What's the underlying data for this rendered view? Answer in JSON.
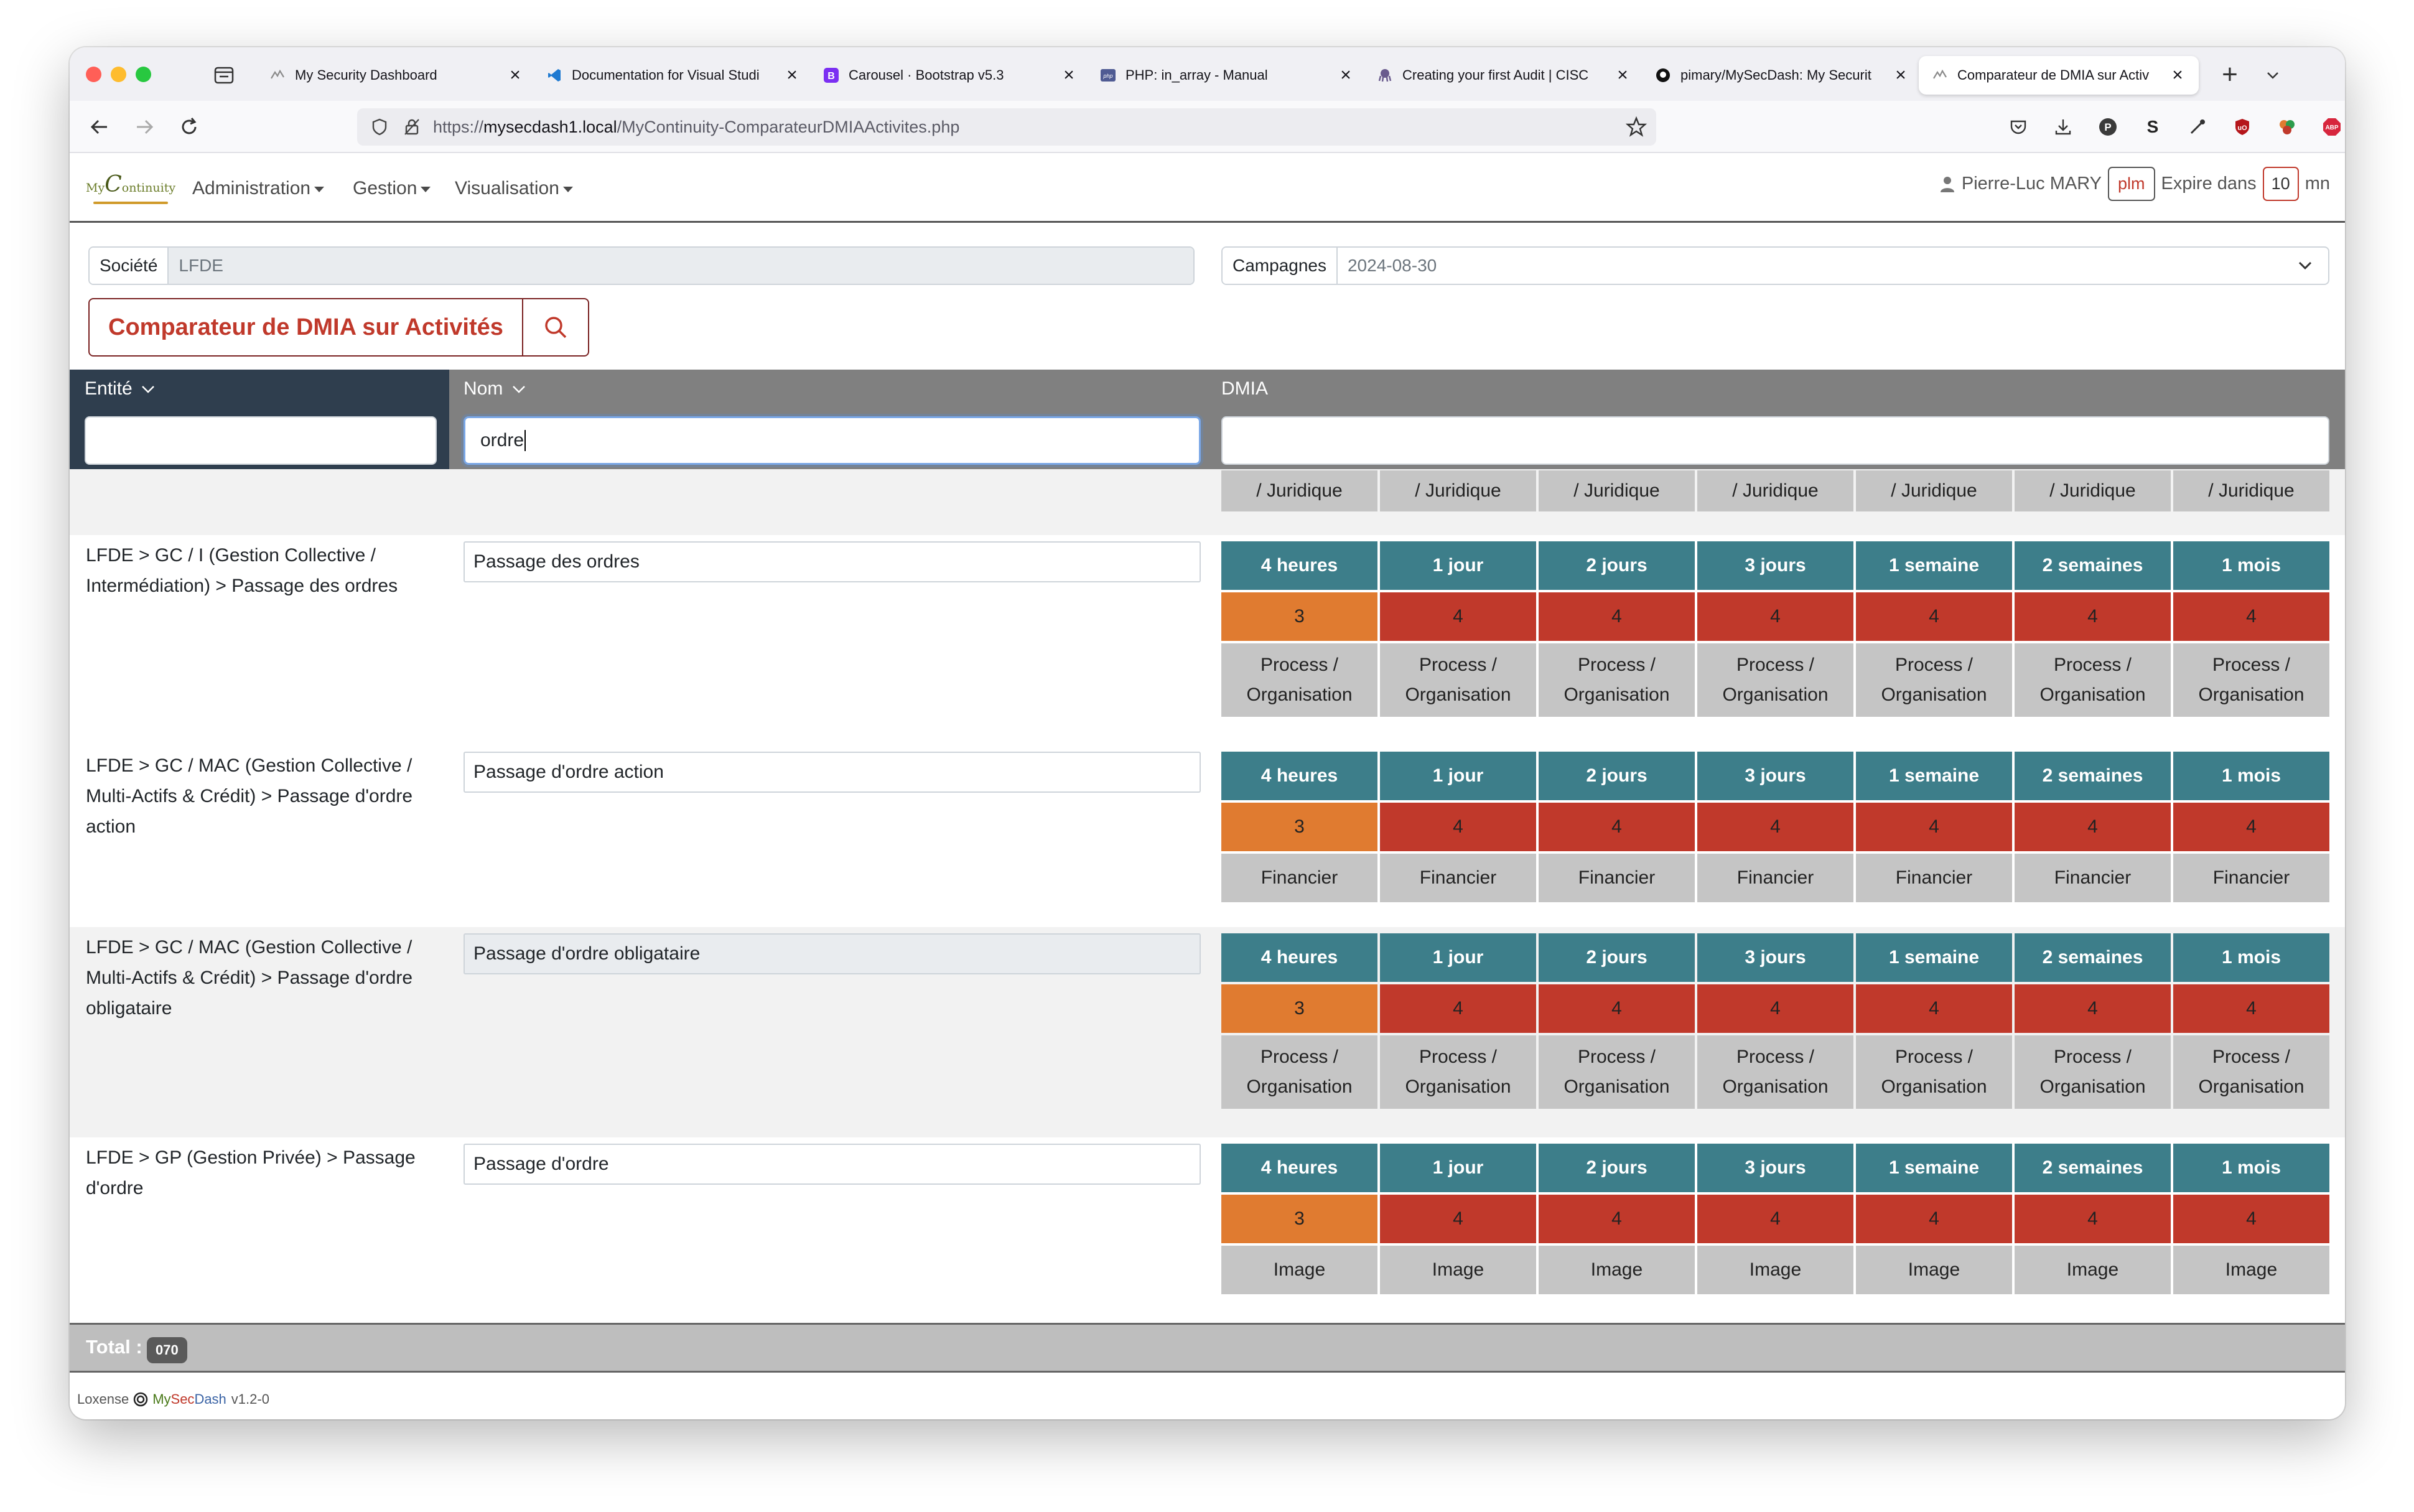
{
  "browser": {
    "tabs": [
      {
        "title": "My Security Dashboard",
        "icon": "mysecdash-icon",
        "active": false
      },
      {
        "title": "Documentation for Visual Studi",
        "icon": "vscode-icon",
        "active": false
      },
      {
        "title": "Carousel · Bootstrap v5.3",
        "icon": "bootstrap-icon",
        "active": false
      },
      {
        "title": "PHP: in_array - Manual",
        "icon": "php-icon",
        "active": false
      },
      {
        "title": "Creating your first Audit | CISC",
        "icon": "octopus-icon",
        "active": false
      },
      {
        "title": "pimary/MySecDash: My Securit",
        "icon": "github-icon",
        "active": false
      },
      {
        "title": "Comparateur de DMIA sur Activ",
        "icon": "mysecdash-icon",
        "active": true
      }
    ],
    "url_prefix": "https://",
    "url_host": "mysecdash1.local",
    "url_path": "/MyContinuity-ComparateurDMIAActivites.php"
  },
  "app": {
    "logo_my": "My",
    "logo_c": "C",
    "logo_rest": "ontinuity",
    "menus": [
      "Administration",
      "Gestion",
      "Visualisation"
    ],
    "user_name": "Pierre-Luc MARY",
    "user_login": "plm",
    "expire_label": "Expire dans",
    "expire_value": "10",
    "expire_unit": "mn"
  },
  "filters": {
    "societe_label": "Société",
    "societe_value": "LFDE",
    "campagnes_label": "Campagnes",
    "campagnes_value": "2024-08-30"
  },
  "page_title": "Comparateur de DMIA sur Activités",
  "table": {
    "headers": {
      "entite": "Entité",
      "nom": "Nom",
      "dmia": "DMIA"
    },
    "filter_values": {
      "entite": "",
      "nom": "ordre",
      "dmia": ""
    },
    "top_partial_row": [
      "/ Juridique",
      "/ Juridique",
      "/ Juridique",
      "/ Juridique",
      "/ Juridique",
      "/ Juridique",
      "/ Juridique"
    ],
    "durations": [
      "4 heures",
      "1 jour",
      "2 jours",
      "3 jours",
      "1 semaine",
      "2 semaines",
      "1 mois"
    ],
    "rows": [
      {
        "entite": "LFDE > GC / I (Gestion Collective / Intermédiation) > Passage des ordres",
        "nom": "Passage des ordres",
        "levels": [
          "3",
          "4",
          "4",
          "4",
          "4",
          "4",
          "4"
        ],
        "categories": [
          "Process / Organisation",
          "Process / Organisation",
          "Process / Organisation",
          "Process / Organisation",
          "Process / Organisation",
          "Process / Organisation",
          "Process / Organisation"
        ]
      },
      {
        "entite": "LFDE > GC / MAC (Gestion Collective / Multi-Actifs & Crédit) > Passage d'ordre action",
        "nom": "Passage d'ordre action",
        "levels": [
          "3",
          "4",
          "4",
          "4",
          "4",
          "4",
          "4"
        ],
        "categories": [
          "Financier",
          "Financier",
          "Financier",
          "Financier",
          "Financier",
          "Financier",
          "Financier"
        ]
      },
      {
        "entite": "LFDE > GC / MAC (Gestion Collective / Multi-Actifs & Crédit) > Passage d'ordre obligataire",
        "nom": "Passage d'ordre obligataire",
        "levels": [
          "3",
          "4",
          "4",
          "4",
          "4",
          "4",
          "4"
        ],
        "categories": [
          "Process / Organisation",
          "Process / Organisation",
          "Process / Organisation",
          "Process / Organisation",
          "Process / Organisation",
          "Process / Organisation",
          "Process / Organisation"
        ]
      },
      {
        "entite": "LFDE > GP (Gestion Privée) > Passage d'ordre",
        "nom": "Passage d'ordre",
        "levels": [
          "3",
          "4",
          "4",
          "4",
          "4",
          "4",
          "4"
        ],
        "categories": [
          "Image",
          "Image",
          "Image",
          "Image",
          "Image",
          "Image",
          "Image"
        ]
      }
    ],
    "total_label": "Total :",
    "total_value": "070"
  },
  "footer": {
    "loxense": "Loxense",
    "brand_my": "My",
    "brand_sec": "Sec",
    "brand_dash": "Dash",
    "version": "v1.2-0"
  },
  "colors": {
    "accent_red": "#c0392b",
    "level3": "#e07b30",
    "level4": "#c0392b",
    "duration_header": "#3d7e8a",
    "entity_header": "#2f3e4e"
  }
}
